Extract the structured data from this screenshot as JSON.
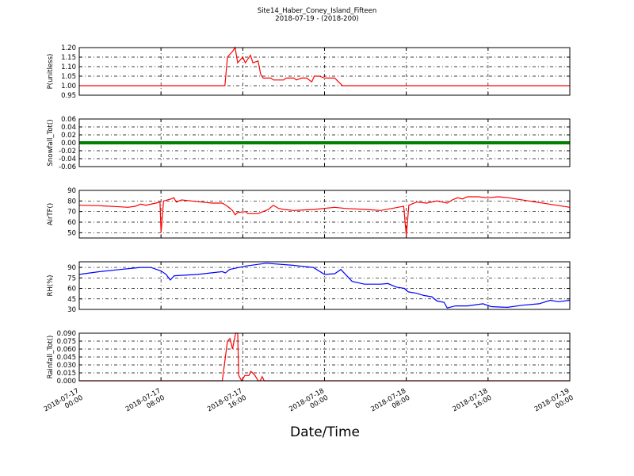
{
  "title": "Site14_Haber_Coney_Island_Fifteen",
  "subtitle": "2018-07-19 - (2018-200)",
  "x_label": "Date/Time",
  "chart_data": [
    {
      "type": "line",
      "y_label": "P(unitless)",
      "color": "#ff0000",
      "grid": true,
      "xlim": [
        "2018-07-17 00:00",
        "2018-07-19 00:00"
      ],
      "xticks": [
        "2018-07-17 00:00",
        "2018-07-17 08:00",
        "2018-07-17 16:00",
        "2018-07-18 00:00",
        "2018-07-18 08:00",
        "2018-07-18 16:00",
        "2018-07-19 00:00"
      ],
      "ylim": [
        0.95,
        1.2
      ],
      "yticks": [
        0.95,
        {
          "value": 1.0,
          "label": "1.00"
        },
        1.05,
        {
          "value": 1.1,
          "label": "1.10"
        },
        1.15,
        {
          "value": 1.2,
          "label": "1.20"
        }
      ],
      "x": [
        "2018-07-17 00:00",
        "2018-07-17 14:15",
        "2018-07-17 14:30",
        "2018-07-17 15:00",
        "2018-07-17 15:15",
        "2018-07-17 15:30",
        "2018-07-17 16:00",
        "2018-07-17 16:15",
        "2018-07-17 16:45",
        "2018-07-17 17:00",
        "2018-07-17 17:30",
        "2018-07-17 17:45",
        "2018-07-17 18:00",
        "2018-07-17 18:45",
        "2018-07-17 19:00",
        "2018-07-17 20:00",
        "2018-07-17 20:15",
        "2018-07-17 21:00",
        "2018-07-17 21:15",
        "2018-07-17 21:45",
        "2018-07-17 22:15",
        "2018-07-17 22:45",
        "2018-07-17 23:00",
        "2018-07-17 23:30",
        "2018-07-18 00:00",
        "2018-07-18 01:00",
        "2018-07-18 01:45",
        "2018-07-19 00:00"
      ],
      "values": [
        1.0,
        1.0,
        1.15,
        1.18,
        1.2,
        1.12,
        1.15,
        1.12,
        1.16,
        1.12,
        1.13,
        1.06,
        1.04,
        1.04,
        1.03,
        1.03,
        1.04,
        1.04,
        1.03,
        1.04,
        1.04,
        1.02,
        1.05,
        1.05,
        1.04,
        1.04,
        1.0,
        1.0
      ]
    },
    {
      "type": "line",
      "y_label": "Snowfall_Tot()",
      "color": "#008000",
      "grid": true,
      "xlim": [
        "2018-07-17 00:00",
        "2018-07-19 00:00"
      ],
      "xticks": [
        "2018-07-17 00:00",
        "2018-07-17 08:00",
        "2018-07-17 16:00",
        "2018-07-18 00:00",
        "2018-07-18 08:00",
        "2018-07-18 16:00",
        "2018-07-19 00:00"
      ],
      "ylim": [
        -0.06,
        0.06
      ],
      "yticks": [
        -0.06,
        -0.04,
        -0.02,
        {
          "value": 0,
          "label": "0.00"
        },
        0.02,
        0.04,
        0.06
      ],
      "x": [
        "2018-07-17 00:00",
        "2018-07-19 00:00"
      ],
      "values": [
        0,
        0
      ]
    },
    {
      "type": "line",
      "y_label": "AirTF()",
      "color": "#ff0000",
      "grid": true,
      "xlim": [
        "2018-07-17 00:00",
        "2018-07-19 00:00"
      ],
      "xticks": [
        "2018-07-17 00:00",
        "2018-07-17 08:00",
        "2018-07-17 16:00",
        "2018-07-18 00:00",
        "2018-07-18 08:00",
        "2018-07-18 16:00",
        "2018-07-19 00:00"
      ],
      "ylim": [
        45,
        90
      ],
      "yticks": [
        50,
        60,
        70,
        80,
        90
      ],
      "x": [
        "2018-07-17 00:00",
        "2018-07-17 02:00",
        "2018-07-17 04:00",
        "2018-07-17 04:45",
        "2018-07-17 05:30",
        "2018-07-17 06:00",
        "2018-07-17 06:30",
        "2018-07-17 07:30",
        "2018-07-17 07:54",
        "2018-07-17 08:00",
        "2018-07-17 08:15",
        "2018-07-17 09:00",
        "2018-07-17 09:15",
        "2018-07-17 09:30",
        "2018-07-17 10:00",
        "2018-07-17 11:00",
        "2018-07-17 12:00",
        "2018-07-17 13:00",
        "2018-07-17 14:00",
        "2018-07-17 14:30",
        "2018-07-17 15:00",
        "2018-07-17 15:15",
        "2018-07-17 15:30",
        "2018-07-17 16:15",
        "2018-07-17 16:30",
        "2018-07-17 17:30",
        "2018-07-17 18:00",
        "2018-07-17 18:30",
        "2018-07-17 19:00",
        "2018-07-17 19:30",
        "2018-07-17 20:00",
        "2018-07-17 21:00",
        "2018-07-17 23:00",
        "2018-07-18 01:00",
        "2018-07-18 02:00",
        "2018-07-18 04:00",
        "2018-07-18 05:30",
        "2018-07-18 07:45",
        "2018-07-18 08:00",
        "2018-07-18 08:15",
        "2018-07-18 09:00",
        "2018-07-18 10:00",
        "2018-07-18 11:00",
        "2018-07-18 12:00",
        "2018-07-18 12:30",
        "2018-07-18 13:00",
        "2018-07-18 13:30",
        "2018-07-18 14:00",
        "2018-07-18 15:00",
        "2018-07-18 16:00",
        "2018-07-18 17:00",
        "2018-07-18 18:00",
        "2018-07-18 20:00",
        "2018-07-18 22:00",
        "2018-07-19 00:00"
      ],
      "values": [
        76,
        75.5,
        74.5,
        74,
        75,
        77,
        76,
        78,
        79,
        50,
        80,
        82,
        83,
        79,
        81,
        80,
        79,
        78,
        78,
        75,
        71,
        67,
        69,
        70,
        68,
        68,
        70,
        72,
        76,
        73,
        72,
        71,
        72,
        74,
        73,
        72,
        71,
        75,
        47,
        76,
        79,
        78,
        80,
        78,
        81,
        83,
        82,
        84,
        84,
        83,
        84,
        83,
        80,
        77,
        74
      ]
    },
    {
      "type": "line",
      "y_label": "RH(%)",
      "color": "#0000ff",
      "grid": true,
      "xlim": [
        "2018-07-17 00:00",
        "2018-07-19 00:00"
      ],
      "xticks": [
        "2018-07-17 00:00",
        "2018-07-17 08:00",
        "2018-07-17 16:00",
        "2018-07-18 00:00",
        "2018-07-18 08:00",
        "2018-07-18 16:00",
        "2018-07-19 00:00"
      ],
      "ylim": [
        30,
        98
      ],
      "yticks": [
        30,
        45,
        60,
        75,
        90
      ],
      "x": [
        "2018-07-17 00:00",
        "2018-07-17 02:00",
        "2018-07-17 04:00",
        "2018-07-17 06:00",
        "2018-07-17 07:00",
        "2018-07-17 08:00",
        "2018-07-17 08:30",
        "2018-07-17 08:54",
        "2018-07-17 09:18",
        "2018-07-17 11:36",
        "2018-07-17 14:00",
        "2018-07-17 14:18",
        "2018-07-17 14:42",
        "2018-07-17 16:18",
        "2018-07-17 18:18",
        "2018-07-17 20:54",
        "2018-07-17 22:54",
        "2018-07-18 00:00",
        "2018-07-18 01:00",
        "2018-07-18 01:36",
        "2018-07-18 02:42",
        "2018-07-18 03:54",
        "2018-07-18 05:30",
        "2018-07-18 06:12",
        "2018-07-18 07:00",
        "2018-07-18 07:48",
        "2018-07-18 08:12",
        "2018-07-18 09:00",
        "2018-07-18 09:42",
        "2018-07-18 10:30",
        "2018-07-18 11:00",
        "2018-07-18 11:42",
        "2018-07-18 12:00",
        "2018-07-18 12:48",
        "2018-07-18 14:00",
        "2018-07-18 15:30",
        "2018-07-18 16:18",
        "2018-07-18 17:54",
        "2018-07-18 19:24",
        "2018-07-18 21:00",
        "2018-07-18 22:06",
        "2018-07-18 22:54",
        "2018-07-19 00:00"
      ],
      "values": [
        80,
        84,
        87,
        90,
        90,
        85,
        80,
        72,
        78,
        80,
        84,
        82,
        87,
        92,
        96,
        93,
        90,
        80,
        81,
        87,
        70,
        66,
        66,
        67,
        62,
        60,
        55,
        53,
        50,
        48,
        42,
        40,
        32,
        35,
        35,
        38,
        34,
        33,
        36,
        38,
        43,
        41,
        43
      ]
    },
    {
      "type": "line",
      "y_label": "Rainfall_Tot()",
      "color": "#ff0000",
      "grid": true,
      "xlim": [
        "2018-07-17 00:00",
        "2018-07-19 00:00"
      ],
      "xticks": [
        "2018-07-17 00:00",
        "2018-07-17 08:00",
        "2018-07-17 16:00",
        "2018-07-18 00:00",
        "2018-07-18 08:00",
        "2018-07-18 16:00",
        "2018-07-19 00:00"
      ],
      "ylim": [
        0,
        0.09
      ],
      "yticks": [
        {
          "value": 0,
          "label": "0.000"
        },
        0.015,
        {
          "value": 0.03,
          "label": "0.030"
        },
        0.045,
        {
          "value": 0.06,
          "label": "0.060"
        },
        0.075,
        {
          "value": 0.09,
          "label": "0.090"
        }
      ],
      "x": [
        "2018-07-17 00:00",
        "2018-07-17 14:00",
        "2018-07-17 14:30",
        "2018-07-17 14:45",
        "2018-07-17 15:00",
        "2018-07-17 15:18",
        "2018-07-17 15:30",
        "2018-07-17 15:36",
        "2018-07-17 15:54",
        "2018-07-17 16:12",
        "2018-07-17 16:36",
        "2018-07-17 16:48",
        "2018-07-17 17:12",
        "2018-07-17 17:30",
        "2018-07-17 17:42",
        "2018-07-17 17:54",
        "2018-07-17 18:06",
        "2018-07-19 00:00"
      ],
      "values": [
        0,
        0,
        0.075,
        0.08,
        0.06,
        0.09,
        0.09,
        0.01,
        0,
        0.01,
        0.01,
        0.018,
        0.01,
        0,
        0,
        0.008,
        0,
        0
      ]
    }
  ]
}
